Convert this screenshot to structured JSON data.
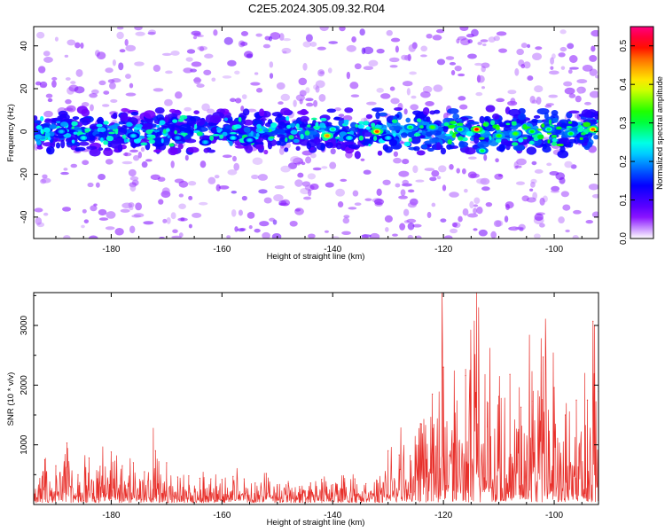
{
  "title": "C2E5.2024.305.09.32.R04",
  "chart_data": [
    {
      "type": "heatmap",
      "xlabel": "Height of straight line (km)",
      "ylabel": "Frequency (Hz)",
      "xlim": [
        -194,
        -92
      ],
      "ylim": [
        -50,
        49
      ],
      "xticks": [
        -180,
        -160,
        -140,
        -120,
        -100
      ],
      "yticks": [
        -40,
        -20,
        0,
        20,
        40
      ],
      "grid": false,
      "colorbar": {
        "label": "Normalized spectral amplitude",
        "range": [
          0.0,
          0.55
        ],
        "ticks": [
          0.0,
          0.1,
          0.2,
          0.3,
          0.4,
          0.5
        ],
        "colors": [
          "#ffffff",
          "#7f00ff",
          "#0000ff",
          "#00ffff",
          "#00ff00",
          "#ffff00",
          "#ff8000",
          "#ff0000",
          "#ff0080"
        ]
      },
      "band": {
        "center_hz": 0,
        "halfwidth_hz": 8
      },
      "peaks": [
        {
          "x": -189,
          "y": 0,
          "v": 0.22
        },
        {
          "x": -185,
          "y": -3,
          "v": 0.25
        },
        {
          "x": -176,
          "y": -2,
          "v": 0.23
        },
        {
          "x": -168,
          "y": -3,
          "v": 0.21
        },
        {
          "x": -163,
          "y": -5,
          "v": 0.22
        },
        {
          "x": -158,
          "y": -3,
          "v": 0.24
        },
        {
          "x": -155,
          "y": -4,
          "v": 0.23
        },
        {
          "x": -140,
          "y": 1,
          "v": 0.28
        },
        {
          "x": -141,
          "y": -2,
          "v": 0.45
        },
        {
          "x": -137,
          "y": -3,
          "v": 0.25
        },
        {
          "x": -132,
          "y": 0,
          "v": 0.48
        },
        {
          "x": -130,
          "y": -3,
          "v": 0.23
        },
        {
          "x": -126,
          "y": 2,
          "v": 0.3
        },
        {
          "x": -122,
          "y": 2,
          "v": 0.34
        },
        {
          "x": -117,
          "y": 1,
          "v": 0.32
        },
        {
          "x": -114,
          "y": 1,
          "v": 0.5
        },
        {
          "x": -113,
          "y": -9,
          "v": 0.3
        },
        {
          "x": -110,
          "y": -2,
          "v": 0.33
        },
        {
          "x": -107,
          "y": -1,
          "v": 0.34
        },
        {
          "x": -104,
          "y": 0,
          "v": 0.32
        },
        {
          "x": -101,
          "y": 1,
          "v": 0.3
        },
        {
          "x": -97,
          "y": -1,
          "v": 0.31
        },
        {
          "x": -93,
          "y": 1,
          "v": 0.47
        }
      ]
    },
    {
      "type": "line",
      "xlabel": "Height of straight line (km)",
      "ylabel": "SNR (10 * v/v)",
      "xlim": [
        -194,
        -92
      ],
      "ylim": [
        0,
        3550
      ],
      "xticks": [
        -180,
        -160,
        -140,
        -120,
        -100
      ],
      "yticks": [
        1000,
        2000,
        3000
      ],
      "grid": false,
      "color": "#e8302b",
      "x": [
        -194,
        -192,
        -190,
        -188,
        -186,
        -184,
        -182,
        -180,
        -178,
        -176,
        -174,
        -172,
        -170,
        -168,
        -166,
        -164,
        -162,
        -160,
        -158,
        -156,
        -154,
        -152,
        -150,
        -148,
        -146,
        -144,
        -142,
        -140,
        -138,
        -136,
        -134,
        -132,
        -130,
        -128,
        -126,
        -124,
        -122,
        -120,
        -118,
        -116,
        -114,
        -112,
        -110,
        -108,
        -106,
        -104,
        -102,
        -100,
        -98,
        -96,
        -94,
        -93,
        -92
      ],
      "y": [
        400,
        750,
        650,
        1030,
        500,
        780,
        640,
        880,
        650,
        700,
        550,
        900,
        700,
        460,
        480,
        440,
        430,
        420,
        470,
        430,
        360,
        520,
        330,
        350,
        300,
        360,
        420,
        330,
        370,
        430,
        350,
        400,
        900,
        830,
        820,
        1350,
        1850,
        2300,
        1500,
        2160,
        3550,
        1700,
        1810,
        2180,
        1630,
        1730,
        2470,
        1960,
        1500,
        1750,
        1750,
        3070,
        1900
      ],
      "extra_peaks": [
        {
          "x": -172.4,
          "y": 1280
        },
        {
          "x": -116,
          "y": 2270
        },
        {
          "x": -112.5,
          "y": 2180
        },
        {
          "x": -106.3,
          "y": 1960
        },
        {
          "x": -103.8,
          "y": 1900
        },
        {
          "x": -94.5,
          "y": 2200
        },
        {
          "x": -92.7,
          "y": 3000
        }
      ]
    }
  ]
}
